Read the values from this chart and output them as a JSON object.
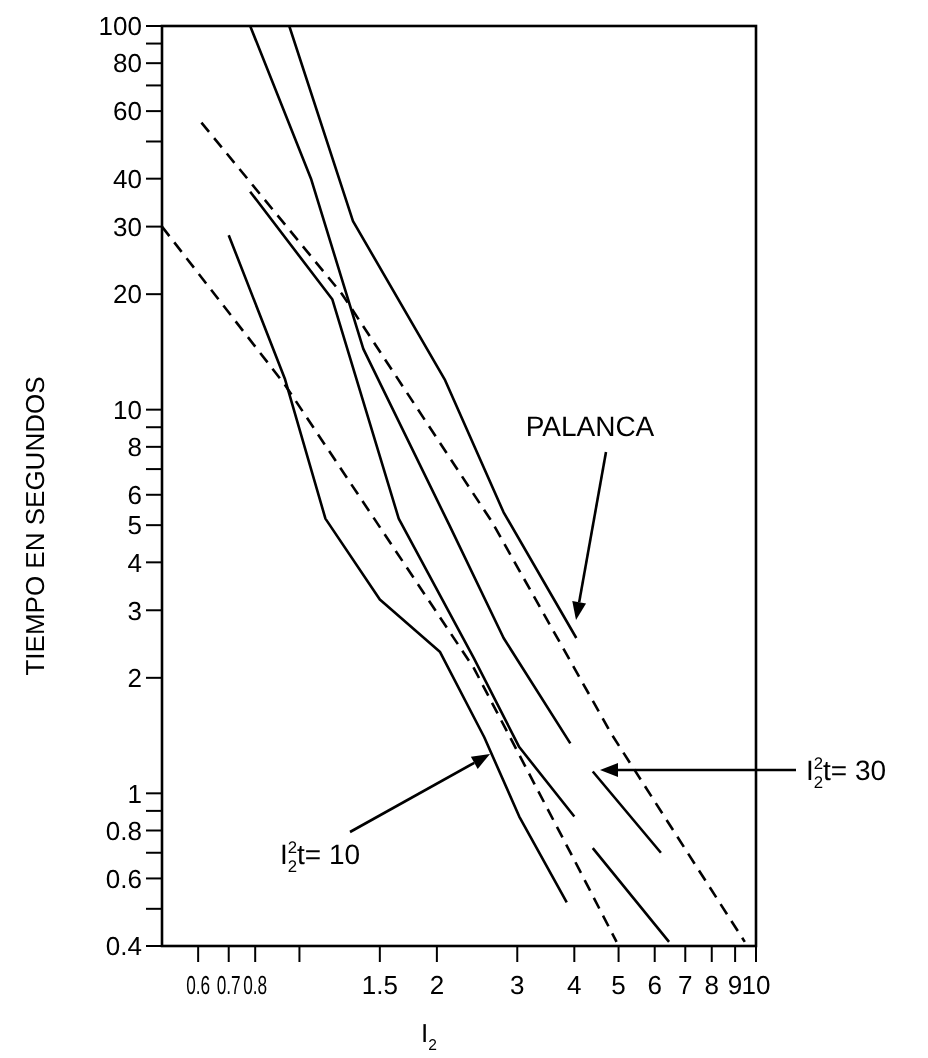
{
  "chart_data": {
    "type": "line",
    "xlabel": "I$_{2}$",
    "ylabel": "TIEMPO EN SEGUNDOS",
    "log": "xy",
    "marker": "none",
    "xlim": [
      0.5,
      10
    ],
    "xticks": [
      0.6,
      0.7,
      0.8,
      {
        "value": 1,
        "label": null
      },
      1.5,
      2,
      3,
      4,
      5,
      6,
      7,
      8,
      9,
      10
    ],
    "ylim": [
      0.4,
      100
    ],
    "yticks": [
      100,
      {
        "value": 90,
        "label": null
      },
      80,
      {
        "value": 70,
        "label": null
      },
      60,
      {
        "value": 50,
        "label": null
      },
      40,
      30,
      20,
      10,
      {
        "value": 9,
        "label": null
      },
      8,
      {
        "value": 7,
        "label": null
      },
      6,
      5,
      4,
      3,
      2,
      1,
      {
        "value": 0.9,
        "label": null
      },
      0.8,
      {
        "value": 0.7,
        "label": null
      },
      0.6,
      {
        "value": 0.5,
        "label": null
      },
      0.4
    ],
    "series": [
      {
        "color": "#000000",
        "line_style": "solid",
        "x": [
          0.78,
          1.06,
          1.38,
          2.13,
          2.8,
          3.92,
          4.1,
          4.39,
          6.19
        ],
        "values": [
          100,
          40,
          14.4,
          5.0,
          2.54,
          1.35,
          null,
          1.14,
          0.7
        ]
      },
      {
        "color": "#000000",
        "line_style": "solid",
        "x": [
          0.95,
          1.31,
          2.08,
          2.8,
          4.04
        ],
        "values": [
          100,
          31,
          12,
          5.4,
          2.54
        ]
      },
      {
        "color": "#000000",
        "line_style": "solid",
        "x": [
          0.78,
          1.18,
          1.65,
          2.41,
          3.03,
          4,
          4.2,
          4.39,
          6.45
        ],
        "values": [
          37,
          19.4,
          5.2,
          2.25,
          1.32,
          0.87,
          null,
          0.72,
          0.41
        ]
      },
      {
        "color": "#000000",
        "line_style": "solid",
        "x": [
          0.7,
          0.93,
          1.14,
          1.5,
          2.03,
          2.54,
          3.03,
          3.85
        ],
        "values": [
          28.5,
          12,
          5.2,
          3.2,
          2.34,
          1.4,
          0.87,
          0.52
        ]
      },
      {
        "color": "#000000",
        "line_style": "dashed",
        "x": [
          0.61,
          1.24,
          2.64,
          4.82,
          9.45
        ],
        "values": [
          56,
          20,
          5.1,
          1.43,
          0.41
        ]
      },
      {
        "color": "#000000",
        "line_style": "dashed",
        "x": [
          0.5,
          0.93,
          2.41,
          4,
          4.95
        ],
        "values": [
          30,
          11.6,
          2.12,
          0.67,
          0.41
        ]
      }
    ],
    "annotations": [
      "PALANCA",
      "I$^{2}$$_{2}$t= 10",
      "I$^{2}$$_{2}$t= 30"
    ]
  }
}
